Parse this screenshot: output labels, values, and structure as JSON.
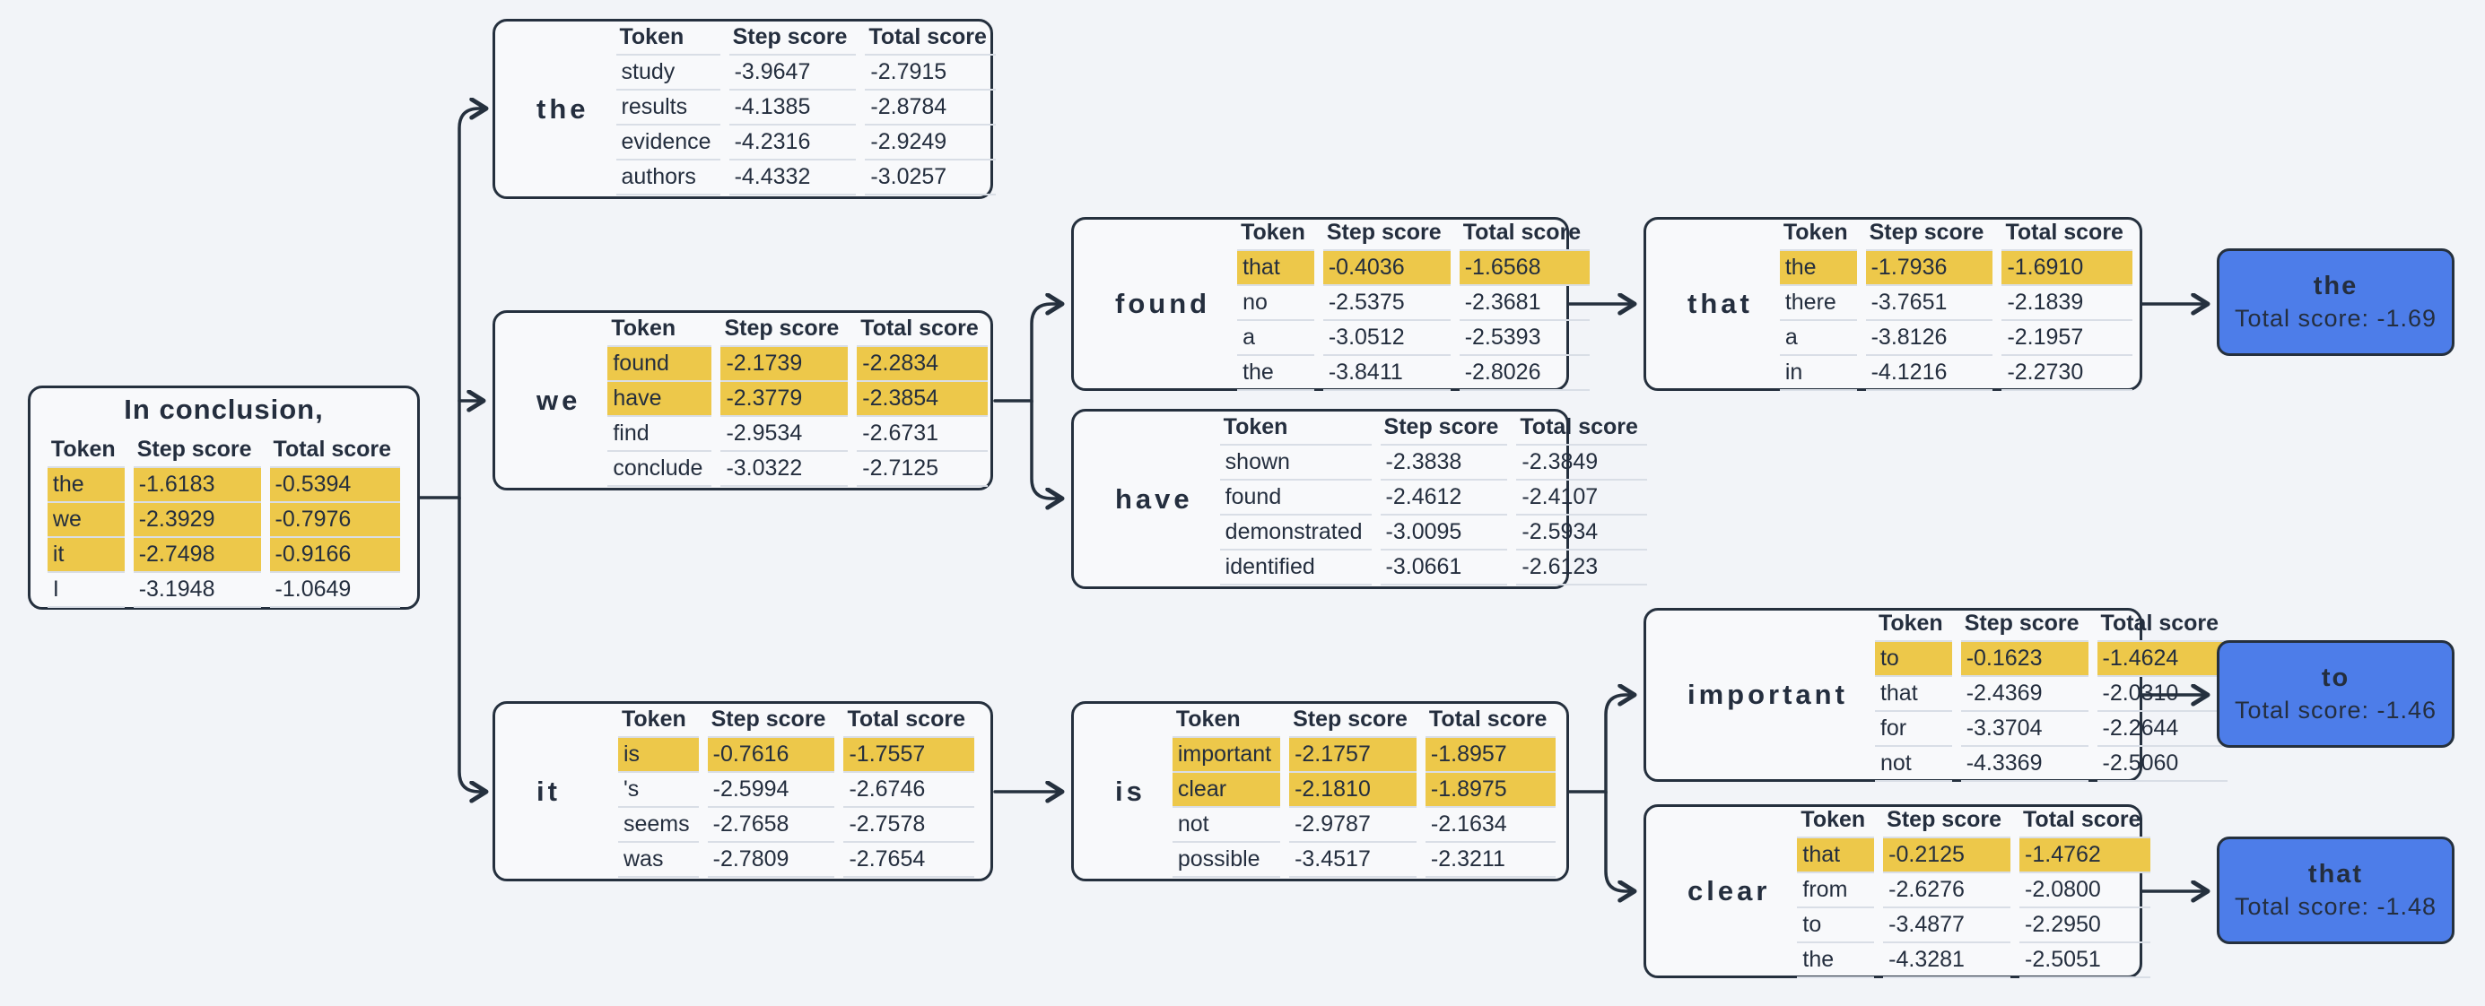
{
  "headers": {
    "token": "Token",
    "step": "Step score",
    "total": "Total score"
  },
  "colors": {
    "background": "#f2f4f8",
    "node_fill": "#f8f9fb",
    "outline": "#25303e",
    "highlight": "#edc84a",
    "final_fill": "#4d7de9",
    "separator": "#d9dee6"
  },
  "nodes": {
    "root": {
      "title": "In conclusion,",
      "rows": [
        {
          "token": "the",
          "step": "-1.6183",
          "total": "-0.5394",
          "highlight": true
        },
        {
          "token": "we",
          "step": "-2.3929",
          "total": "-0.7976",
          "highlight": true
        },
        {
          "token": "it",
          "step": "-2.7498",
          "total": "-0.9166",
          "highlight": true
        },
        {
          "token": "I",
          "step": "-3.1948",
          "total": "-1.0649",
          "highlight": false
        }
      ]
    },
    "the": {
      "label": "the",
      "rows": [
        {
          "token": "study",
          "step": "-3.9647",
          "total": "-2.7915",
          "highlight": false
        },
        {
          "token": "results",
          "step": "-4.1385",
          "total": "-2.8784",
          "highlight": false
        },
        {
          "token": "evidence",
          "step": "-4.2316",
          "total": "-2.9249",
          "highlight": false
        },
        {
          "token": "authors",
          "step": "-4.4332",
          "total": "-3.0257",
          "highlight": false
        }
      ]
    },
    "we": {
      "label": "we",
      "rows": [
        {
          "token": "found",
          "step": "-2.1739",
          "total": "-2.2834",
          "highlight": true
        },
        {
          "token": "have",
          "step": "-2.3779",
          "total": "-2.3854",
          "highlight": true
        },
        {
          "token": "find",
          "step": "-2.9534",
          "total": "-2.6731",
          "highlight": false
        },
        {
          "token": "conclude",
          "step": "-3.0322",
          "total": "-2.7125",
          "highlight": false
        }
      ]
    },
    "it": {
      "label": "it",
      "rows": [
        {
          "token": "is",
          "step": "-0.7616",
          "total": "-1.7557",
          "highlight": true
        },
        {
          "token": "'s",
          "step": "-2.5994",
          "total": "-2.6746",
          "highlight": false
        },
        {
          "token": "seems",
          "step": "-2.7658",
          "total": "-2.7578",
          "highlight": false
        },
        {
          "token": "was",
          "step": "-2.7809",
          "total": "-2.7654",
          "highlight": false
        }
      ]
    },
    "found": {
      "label": "found",
      "rows": [
        {
          "token": "that",
          "step": "-0.4036",
          "total": "-1.6568",
          "highlight": true
        },
        {
          "token": "no",
          "step": "-2.5375",
          "total": "-2.3681",
          "highlight": false
        },
        {
          "token": "a",
          "step": "-3.0512",
          "total": "-2.5393",
          "highlight": false
        },
        {
          "token": "the",
          "step": "-3.8411",
          "total": "-2.8026",
          "highlight": false
        }
      ]
    },
    "have": {
      "label": "have",
      "rows": [
        {
          "token": "shown",
          "step": "-2.3838",
          "total": "-2.3849",
          "highlight": false
        },
        {
          "token": "found",
          "step": "-2.4612",
          "total": "-2.4107",
          "highlight": false
        },
        {
          "token": "demonstrated",
          "step": "-3.0095",
          "total": "-2.5934",
          "highlight": false
        },
        {
          "token": "identified",
          "step": "-3.0661",
          "total": "-2.6123",
          "highlight": false
        }
      ]
    },
    "is": {
      "label": "is",
      "rows": [
        {
          "token": "important",
          "step": "-2.1757",
          "total": "-1.8957",
          "highlight": true
        },
        {
          "token": "clear",
          "step": "-2.1810",
          "total": "-1.8975",
          "highlight": true
        },
        {
          "token": "not",
          "step": "-2.9787",
          "total": "-2.1634",
          "highlight": false
        },
        {
          "token": "possible",
          "step": "-3.4517",
          "total": "-2.3211",
          "highlight": false
        }
      ]
    },
    "that": {
      "label": "that",
      "rows": [
        {
          "token": "the",
          "step": "-1.7936",
          "total": "-1.6910",
          "highlight": true
        },
        {
          "token": "there",
          "step": "-3.7651",
          "total": "-2.1839",
          "highlight": false
        },
        {
          "token": "a",
          "step": "-3.8126",
          "total": "-2.1957",
          "highlight": false
        },
        {
          "token": "in",
          "step": "-4.1216",
          "total": "-2.2730",
          "highlight": false
        }
      ]
    },
    "important": {
      "label": "important",
      "rows": [
        {
          "token": "to",
          "step": "-0.1623",
          "total": "-1.4624",
          "highlight": true
        },
        {
          "token": "that",
          "step": "-2.4369",
          "total": "-2.0310",
          "highlight": false
        },
        {
          "token": "for",
          "step": "-3.3704",
          "total": "-2.2644",
          "highlight": false
        },
        {
          "token": "not",
          "step": "-4.3369",
          "total": "-2.5060",
          "highlight": false
        }
      ]
    },
    "clear": {
      "label": "clear",
      "rows": [
        {
          "token": "that",
          "step": "-0.2125",
          "total": "-1.4762",
          "highlight": true
        },
        {
          "token": "from",
          "step": "-2.6276",
          "total": "-2.0800",
          "highlight": false
        },
        {
          "token": "to",
          "step": "-3.4877",
          "total": "-2.2950",
          "highlight": false
        },
        {
          "token": "the",
          "step": "-4.3281",
          "total": "-2.5051",
          "highlight": false
        }
      ]
    }
  },
  "finals": {
    "the": {
      "label": "the",
      "total": "Total score: -1.69"
    },
    "to": {
      "label": "to",
      "total": "Total score: -1.46"
    },
    "that": {
      "label": "that",
      "total": "Total score: -1.48"
    }
  }
}
